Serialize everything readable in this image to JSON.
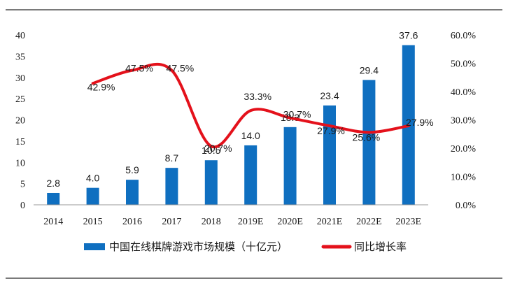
{
  "colors": {
    "bar": "#0f6fc0",
    "line": "#e4111b",
    "frame": "#2b2b2b"
  },
  "chart_data": {
    "type": "bar",
    "categories": [
      "2014",
      "2015",
      "2016",
      "2017",
      "2018",
      "2019E",
      "2020E",
      "2021E",
      "2022E",
      "2023E"
    ],
    "series": [
      {
        "name": "中国在线棋牌游戏市场规模（十亿元）",
        "type": "bar",
        "axis": "left",
        "values": [
          2.8,
          4.0,
          5.9,
          8.7,
          10.5,
          14.0,
          18.3,
          23.4,
          29.4,
          37.6
        ],
        "labels": [
          "2.8",
          "4.0",
          "5.9",
          "8.7",
          "10.5",
          "14.0",
          "18.3",
          "23.4",
          "29.4",
          "37.6"
        ]
      },
      {
        "name": "同比增长率",
        "type": "line",
        "axis": "right",
        "values": [
          null,
          42.9,
          47.5,
          47.5,
          20.7,
          33.3,
          30.7,
          27.9,
          25.6,
          27.9
        ],
        "labels": [
          null,
          "42.9%",
          "47.5%",
          "47.5%",
          "20.7%",
          "33.3%",
          "30.7%",
          "27.9%",
          "25.6%",
          "27.9%"
        ]
      }
    ],
    "y_left": {
      "min": 0,
      "max": 40,
      "step": 5,
      "ticks": [
        "0",
        "5",
        "10",
        "15",
        "20",
        "25",
        "30",
        "35",
        "40"
      ]
    },
    "y_right": {
      "min": 0,
      "max": 60,
      "step": 10,
      "ticks": [
        "0.0%",
        "10.0%",
        "20.0%",
        "30.0%",
        "40.0%",
        "50.0%",
        "60.0%"
      ]
    },
    "grid": false,
    "legend_position": "bottom"
  }
}
